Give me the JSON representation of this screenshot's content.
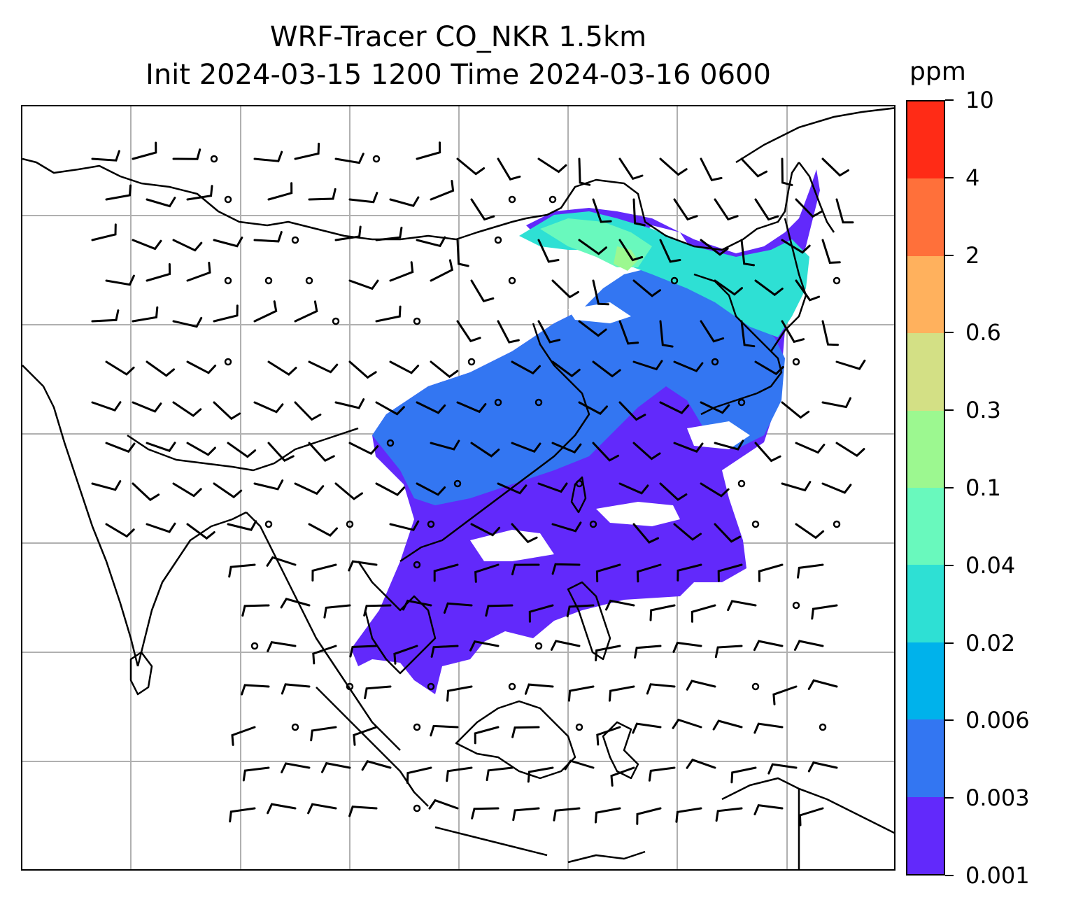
{
  "title": {
    "line1": "WRF-Tracer CO_NKR 1.5km",
    "line2": "Init 2024-03-15 1200 Time 2024-03-16 0600"
  },
  "colorbar": {
    "unit": "ppm",
    "levels": [
      "0.001",
      "0.003",
      "0.006",
      "0.02",
      "0.04",
      "0.1",
      "0.3",
      "0.6",
      "2",
      "4",
      "10"
    ],
    "colors": [
      "#6229fb",
      "#3376f2",
      "#00b2eb",
      "#2ee0d4",
      "#69f9bd",
      "#9cf890",
      "#d3e085",
      "#ffb15d",
      "#ff703a",
      "#ff2b16"
    ]
  },
  "map": {
    "field": "CO tracer concentration",
    "gridlines": true,
    "overlay": "wind barbs",
    "plume_colors": [
      "#6229fb",
      "#3376f2",
      "#2ee0d4",
      "#69f9bd",
      "#9cf890"
    ]
  }
}
